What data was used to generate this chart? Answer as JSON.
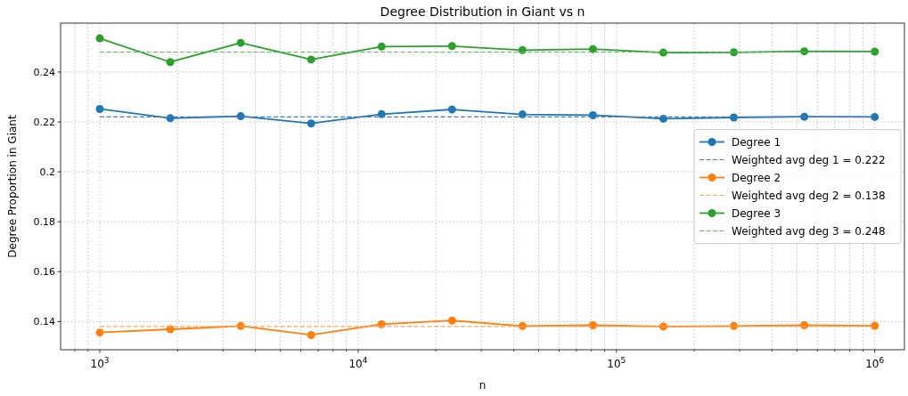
{
  "chart_data": {
    "type": "line",
    "title": "Degree Distribution in Giant vs n",
    "xlabel": "n",
    "ylabel": "Degree Proportion in Giant",
    "log": "x",
    "grid": true,
    "legend": "right",
    "marker": "circle",
    "x": [
      1000,
      1874,
      3511,
      6579,
      12328,
      23101,
      43288,
      81113,
      151991,
      284804,
      533670,
      1000000
    ],
    "xlim": [
      705,
      1303000
    ],
    "xticks": [
      {
        "value": 800,
        "label": null
      },
      {
        "value": 900,
        "label": null
      },
      {
        "value": 1000,
        "label": "10$^{3}$"
      },
      {
        "value": 2000,
        "label": null
      },
      {
        "value": 3000,
        "label": null
      },
      {
        "value": 4000,
        "label": null
      },
      {
        "value": 5000,
        "label": null
      },
      {
        "value": 6000,
        "label": null
      },
      {
        "value": 7000,
        "label": null
      },
      {
        "value": 8000,
        "label": null
      },
      {
        "value": 9000,
        "label": null
      },
      {
        "value": 10000,
        "label": "10$^{4}$"
      },
      {
        "value": 20000,
        "label": null
      },
      {
        "value": 30000,
        "label": null
      },
      {
        "value": 40000,
        "label": null
      },
      {
        "value": 50000,
        "label": null
      },
      {
        "value": 60000,
        "label": null
      },
      {
        "value": 70000,
        "label": null
      },
      {
        "value": 80000,
        "label": null
      },
      {
        "value": 90000,
        "label": null
      },
      {
        "value": 100000,
        "label": "10$^{5}$"
      },
      {
        "value": 200000,
        "label": null
      },
      {
        "value": 300000,
        "label": null
      },
      {
        "value": 400000,
        "label": null
      },
      {
        "value": 500000,
        "label": null
      },
      {
        "value": 600000,
        "label": null
      },
      {
        "value": 700000,
        "label": null
      },
      {
        "value": 800000,
        "label": null
      },
      {
        "value": 900000,
        "label": null
      },
      {
        "value": 1000000,
        "label": "10$^{6}$"
      }
    ],
    "ylim": [
      0.1287,
      0.2596
    ],
    "yticks": [
      0.14,
      0.16,
      0.18,
      0.2,
      0.22,
      0.24
    ],
    "series": [
      {
        "name": "Degree 1",
        "color": "#1f77b4",
        "values": [
          0.2252,
          0.2215,
          0.2223,
          0.2194,
          0.2231,
          0.225,
          0.223,
          0.2227,
          0.2213,
          0.2218,
          0.2221,
          0.222
        ]
      },
      {
        "name": "Weighted avg deg 1 = 0.222",
        "type": "line",
        "color": "#4a7fb0",
        "line_style": "dashed",
        "marker": "none",
        "values": [
          0.222,
          0.222,
          0.222,
          0.222,
          0.222,
          0.222,
          0.222,
          0.222,
          0.222,
          0.222,
          0.222,
          0.222
        ]
      },
      {
        "name": "Degree 2",
        "color": "#ff7f0e",
        "values": [
          0.1356,
          0.1369,
          0.1382,
          0.1346,
          0.1389,
          0.1404,
          0.1382,
          0.1385,
          0.138,
          0.1382,
          0.1385,
          0.1383
        ]
      },
      {
        "name": "Weighted avg deg 2 = 0.138",
        "type": "line",
        "color": "#ffa55c",
        "line_style": "dashed",
        "marker": "none",
        "values": [
          0.138,
          0.138,
          0.138,
          0.138,
          0.138,
          0.138,
          0.138,
          0.138,
          0.138,
          0.138,
          0.138,
          0.138
        ]
      },
      {
        "name": "Degree 3",
        "color": "#2ca02c",
        "values": [
          0.2535,
          0.244,
          0.2517,
          0.245,
          0.2502,
          0.2504,
          0.2488,
          0.2492,
          0.2478,
          0.2479,
          0.2483,
          0.2482
        ]
      },
      {
        "name": "Weighted avg deg 3 = 0.248",
        "type": "line",
        "color": "#5cbf5c",
        "line_style": "dashed",
        "marker": "none",
        "values": [
          0.248,
          0.248,
          0.248,
          0.248,
          0.248,
          0.248,
          0.248,
          0.248,
          0.248,
          0.248,
          0.248,
          0.248
        ]
      }
    ]
  }
}
